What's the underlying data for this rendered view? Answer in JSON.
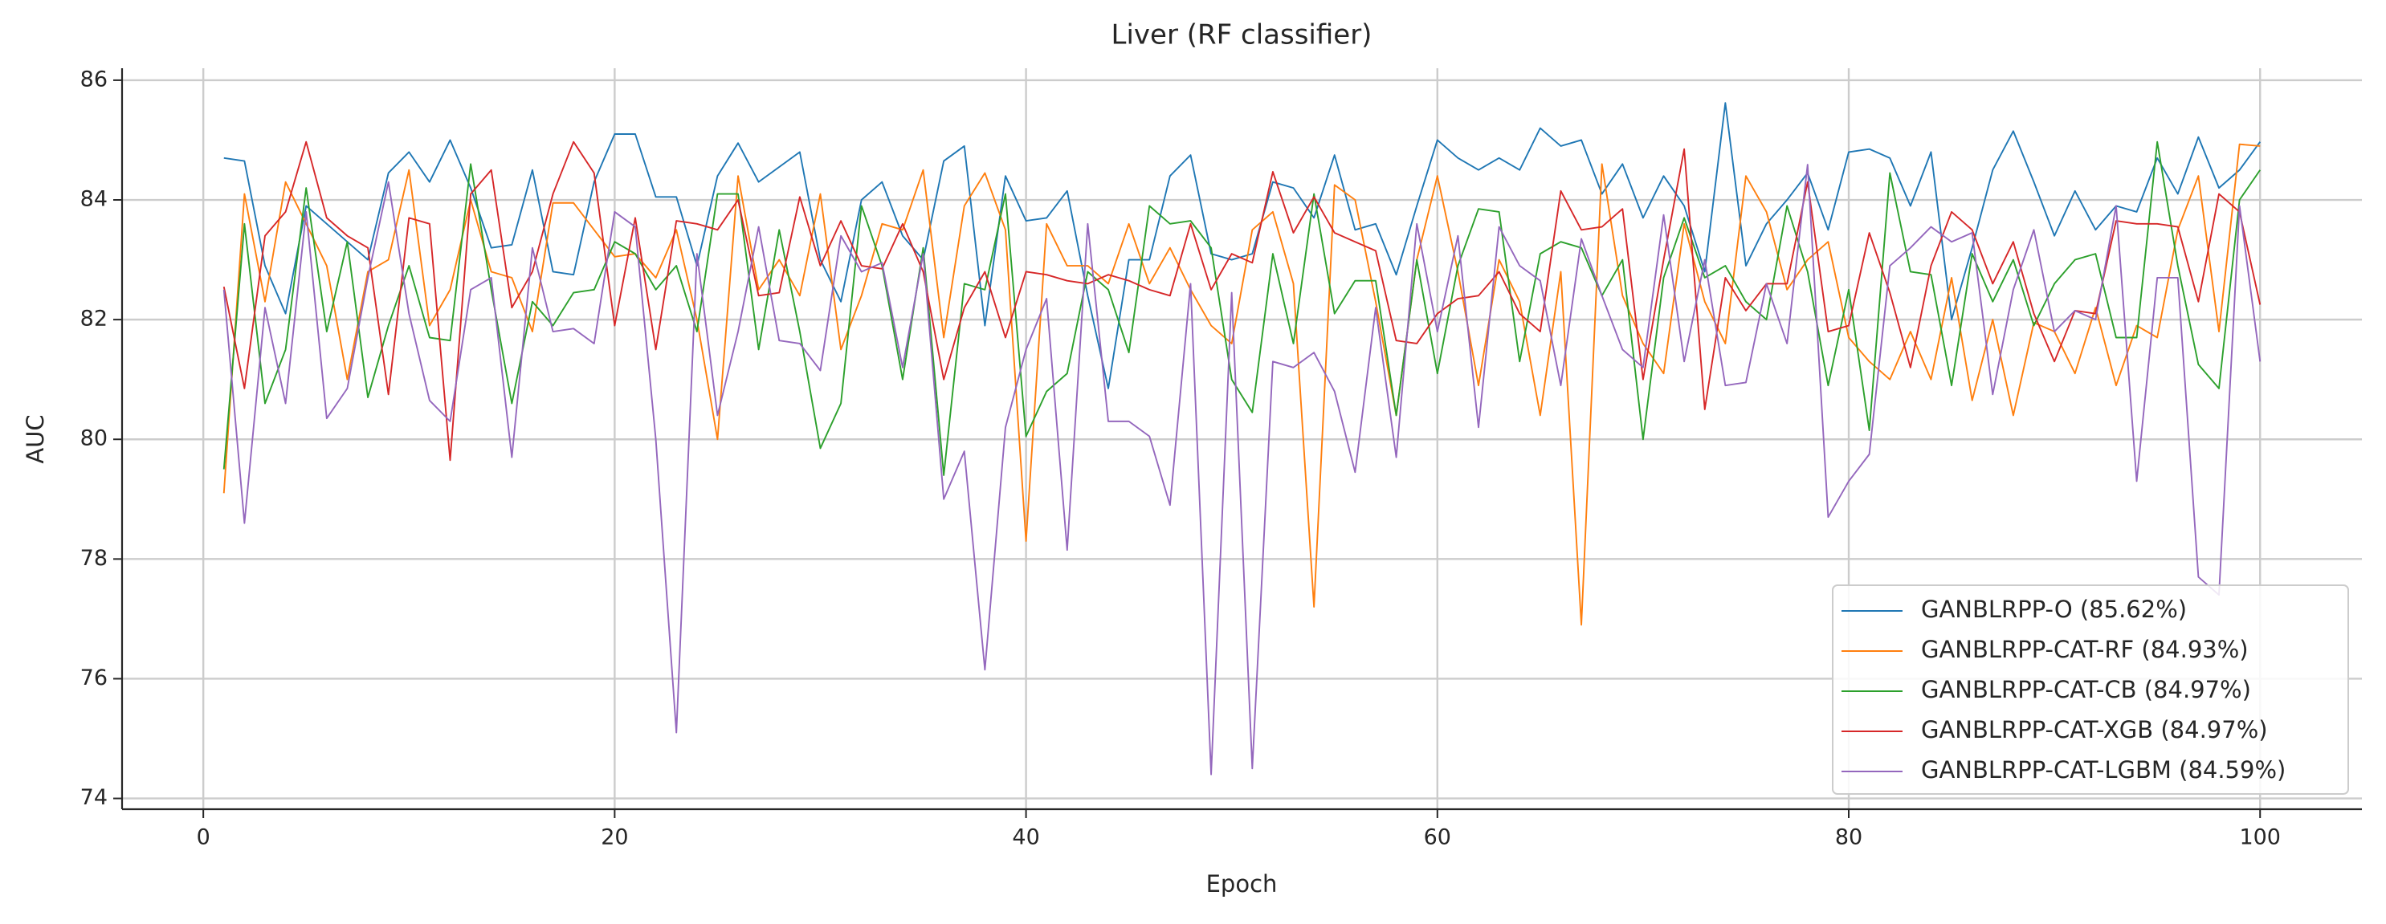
{
  "chart_data": {
    "type": "line",
    "title": "Liver (RF classifier)",
    "x_label": "Epoch",
    "y_label": "AUC",
    "xlim": [
      -3.95,
      104.95
    ],
    "ylim": [
      73.82,
      86.2
    ],
    "xticks": [
      0,
      20,
      40,
      60,
      80,
      100
    ],
    "yticks": [
      74,
      76,
      78,
      80,
      82,
      84,
      86
    ],
    "grid": true,
    "legend": "lower right",
    "x": [
      1,
      2,
      3,
      4,
      5,
      6,
      7,
      8,
      9,
      10,
      11,
      12,
      13,
      14,
      15,
      16,
      17,
      18,
      19,
      20,
      21,
      22,
      23,
      24,
      25,
      26,
      27,
      28,
      29,
      30,
      31,
      32,
      33,
      34,
      35,
      36,
      37,
      38,
      39,
      40,
      41,
      42,
      43,
      44,
      45,
      46,
      47,
      48,
      49,
      50,
      51,
      52,
      53,
      54,
      55,
      56,
      57,
      58,
      59,
      60,
      61,
      62,
      63,
      64,
      65,
      66,
      67,
      68,
      69,
      70,
      71,
      72,
      73,
      74,
      75,
      76,
      77,
      78,
      79,
      80,
      81,
      82,
      83,
      84,
      85,
      86,
      87,
      88,
      89,
      90,
      91,
      92,
      93,
      94,
      95,
      96,
      97,
      98,
      99,
      100
    ],
    "series": [
      {
        "name": "GANBLRPP-O (85.62%)",
        "color": "#1f77b4",
        "values": [
          84.7,
          84.65,
          82.9,
          82.1,
          83.9,
          83.6,
          83.3,
          83.0,
          84.45,
          84.8,
          84.3,
          85.0,
          84.2,
          83.2,
          83.25,
          84.5,
          82.8,
          82.75,
          84.3,
          85.1,
          85.1,
          84.05,
          84.05,
          82.9,
          84.4,
          84.95,
          84.3,
          84.55,
          84.8,
          83.0,
          82.3,
          84.0,
          84.3,
          83.4,
          83.0,
          84.65,
          84.9,
          81.9,
          84.4,
          83.65,
          83.7,
          84.15,
          82.4,
          80.85,
          83.0,
          83.0,
          84.4,
          84.75,
          83.1,
          83.0,
          83.1,
          84.3,
          84.2,
          83.7,
          84.75,
          83.5,
          83.6,
          82.75,
          83.9,
          85.0,
          84.7,
          84.5,
          84.7,
          84.5,
          85.2,
          84.9,
          85.0,
          84.1,
          84.6,
          83.7,
          84.4,
          83.9,
          82.8,
          85.62,
          82.9,
          83.6,
          84.0,
          84.45,
          83.5,
          84.8,
          84.85,
          84.7,
          83.9,
          84.8,
          82.0,
          83.2,
          84.5,
          85.15,
          84.3,
          83.4,
          84.15,
          83.5,
          83.9,
          83.8,
          84.7,
          84.1,
          85.05,
          84.2,
          84.5,
          84.97
        ]
      },
      {
        "name": "GANBLRPP-CAT-RF (84.93%)",
        "color": "#ff7f0e",
        "values": [
          79.1,
          84.1,
          82.3,
          84.3,
          83.6,
          82.9,
          81.0,
          82.8,
          83.0,
          84.5,
          81.9,
          82.5,
          84.0,
          82.8,
          82.7,
          81.8,
          83.95,
          83.95,
          83.5,
          83.05,
          83.1,
          82.7,
          83.5,
          82.0,
          80.0,
          84.4,
          82.5,
          83.0,
          82.4,
          84.1,
          81.5,
          82.4,
          83.6,
          83.5,
          84.5,
          81.7,
          83.9,
          84.45,
          83.5,
          78.3,
          83.6,
          82.9,
          82.9,
          82.6,
          83.6,
          82.6,
          83.2,
          82.5,
          81.9,
          81.6,
          83.5,
          83.8,
          82.6,
          77.2,
          84.25,
          84.0,
          82.3,
          80.4,
          83.0,
          84.4,
          82.8,
          80.9,
          83.0,
          82.3,
          80.4,
          82.8,
          76.9,
          84.6,
          82.4,
          81.6,
          81.1,
          83.6,
          82.3,
          81.6,
          84.4,
          83.8,
          82.5,
          83.0,
          83.3,
          81.7,
          81.3,
          81.0,
          81.8,
          81.0,
          82.7,
          80.65,
          82.0,
          80.4,
          81.95,
          81.8,
          81.1,
          82.2,
          80.9,
          81.9,
          81.7,
          83.5,
          84.4,
          81.8,
          84.93,
          84.9
        ]
      },
      {
        "name": "GANBLRPP-CAT-CB (84.97%)",
        "color": "#2ca02c",
        "values": [
          79.5,
          83.6,
          80.6,
          81.5,
          84.2,
          81.8,
          83.3,
          80.7,
          81.9,
          82.9,
          81.7,
          81.65,
          84.6,
          82.5,
          80.6,
          82.3,
          81.9,
          82.45,
          82.5,
          83.3,
          83.1,
          82.5,
          82.9,
          81.8,
          84.1,
          84.1,
          81.5,
          83.5,
          81.8,
          79.85,
          80.6,
          83.9,
          82.9,
          81.0,
          83.2,
          79.4,
          82.6,
          82.5,
          84.1,
          80.05,
          80.8,
          81.1,
          82.8,
          82.5,
          81.45,
          83.9,
          83.6,
          83.65,
          83.2,
          81.0,
          80.45,
          83.1,
          81.6,
          84.1,
          82.1,
          82.65,
          82.65,
          80.4,
          83.0,
          81.1,
          82.9,
          83.85,
          83.8,
          81.3,
          83.1,
          83.3,
          83.2,
          82.4,
          83.0,
          80.0,
          82.7,
          83.7,
          82.7,
          82.9,
          82.3,
          82.0,
          83.9,
          82.8,
          80.9,
          82.5,
          80.15,
          84.45,
          82.8,
          82.75,
          80.9,
          83.1,
          82.3,
          83.0,
          81.9,
          82.6,
          83.0,
          83.1,
          81.7,
          81.7,
          84.97,
          82.9,
          81.25,
          80.85,
          84.0,
          84.5
        ]
      },
      {
        "name": "GANBLRPP-CAT-XGB (84.97%)",
        "color": "#d62728",
        "values": [
          82.55,
          80.85,
          83.4,
          83.8,
          84.97,
          83.7,
          83.4,
          83.2,
          80.75,
          83.7,
          83.6,
          79.65,
          84.1,
          84.5,
          82.2,
          82.8,
          84.1,
          84.97,
          84.45,
          81.9,
          83.7,
          81.5,
          83.65,
          83.6,
          83.5,
          84.0,
          82.4,
          82.45,
          84.05,
          82.9,
          83.65,
          82.9,
          82.85,
          83.6,
          82.8,
          81.0,
          82.2,
          82.8,
          81.7,
          82.8,
          82.75,
          82.65,
          82.6,
          82.75,
          82.65,
          82.5,
          82.4,
          83.6,
          82.5,
          83.1,
          82.95,
          84.47,
          83.45,
          84.05,
          83.45,
          83.3,
          83.15,
          81.65,
          81.6,
          82.1,
          82.35,
          82.4,
          82.8,
          82.1,
          81.8,
          84.15,
          83.5,
          83.55,
          83.85,
          81.0,
          83.0,
          84.85,
          80.5,
          82.7,
          82.15,
          82.6,
          82.6,
          84.3,
          81.8,
          81.9,
          83.45,
          82.45,
          81.2,
          82.9,
          83.8,
          83.5,
          82.6,
          83.3,
          82.1,
          81.3,
          82.15,
          82.1,
          83.65,
          83.6,
          83.6,
          83.55,
          82.3,
          84.1,
          83.8,
          82.25
        ]
      },
      {
        "name": "GANBLRPP-CAT-LGBM (84.59%)",
        "color": "#9467bd",
        "values": [
          82.5,
          78.6,
          82.2,
          80.6,
          83.8,
          80.35,
          80.85,
          82.7,
          84.3,
          82.1,
          80.65,
          80.3,
          82.5,
          82.7,
          79.7,
          83.2,
          81.8,
          81.85,
          81.6,
          83.8,
          83.55,
          80.0,
          75.1,
          83.1,
          80.4,
          81.8,
          83.55,
          81.65,
          81.6,
          81.15,
          83.4,
          82.8,
          82.95,
          81.2,
          83.1,
          79.0,
          79.8,
          76.15,
          80.2,
          81.5,
          82.35,
          78.15,
          83.6,
          80.3,
          80.3,
          80.05,
          78.9,
          82.6,
          74.4,
          82.45,
          74.5,
          81.3,
          81.2,
          81.45,
          80.8,
          79.45,
          82.2,
          79.7,
          83.6,
          81.8,
          83.4,
          80.2,
          83.55,
          82.9,
          82.65,
          80.9,
          83.35,
          82.4,
          81.5,
          81.2,
          83.75,
          81.3,
          83.0,
          80.9,
          80.95,
          82.6,
          81.6,
          84.59,
          78.7,
          79.3,
          79.75,
          82.9,
          83.2,
          83.55,
          83.3,
          83.45,
          80.75,
          82.5,
          83.5,
          81.8,
          82.15,
          82.0,
          83.9,
          79.3,
          82.7,
          82.7,
          77.7,
          77.4,
          83.9,
          81.3
        ]
      }
    ]
  }
}
